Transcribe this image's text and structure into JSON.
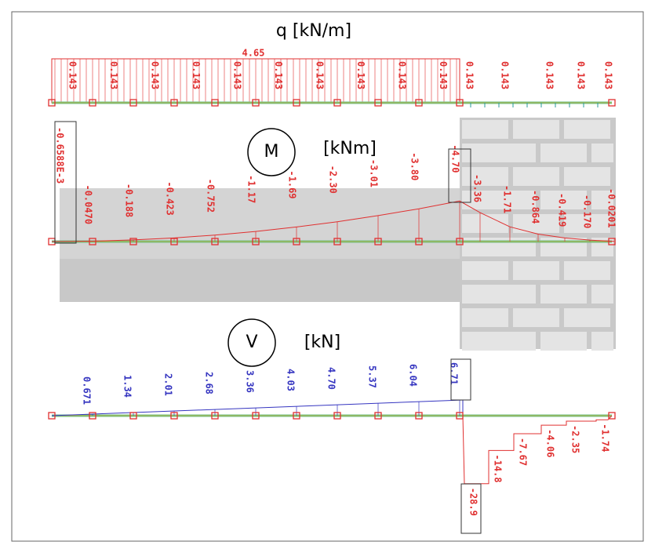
{
  "q": {
    "title": "q [kN/m]",
    "total": "4.65",
    "left": [
      "0.143",
      "0.143",
      "0.143",
      "0.143",
      "0.143",
      "0.143",
      "0.143",
      "0.143",
      "0.143",
      "0.143"
    ],
    "right": [
      "0.143",
      "0.143",
      "0.143",
      "0.143",
      "0.143"
    ]
  },
  "moment": {
    "symbol": "M",
    "unit": "[kNm]",
    "left": [
      "-0.6588E-3",
      "-0.0470",
      "-0.188",
      "-0.423",
      "-0.752",
      "-1.17",
      "-1.69",
      "-2.30",
      "-3.01",
      "-3.80",
      "-4.70"
    ],
    "right": [
      "-3.36",
      "-1.71",
      "-0.864",
      "-0.419",
      "-0.170",
      "-0.0201"
    ]
  },
  "shear": {
    "symbol": "V",
    "unit": "[kN]",
    "left": [
      "0.671",
      "1.34",
      "2.01",
      "2.68",
      "3.36",
      "4.03",
      "4.70",
      "5.37",
      "6.04",
      "6.71"
    ],
    "right": [
      "-28.9",
      "-14.8",
      "-7.67",
      "-4.06",
      "-2.35",
      "-1.74"
    ]
  }
}
